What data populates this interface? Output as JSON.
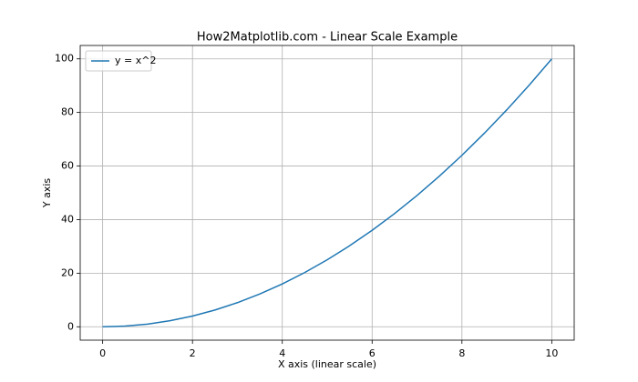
{
  "chart_data": {
    "type": "line",
    "title": "How2Matplotlib.com - Linear Scale Example",
    "x_label": "X axis (linear scale)",
    "y_label": "Y axis",
    "x": [
      0,
      0.5,
      1,
      1.5,
      2,
      2.5,
      3,
      3.5,
      4,
      4.5,
      5,
      5.5,
      6,
      6.5,
      7,
      7.5,
      8,
      8.5,
      9,
      9.5,
      10
    ],
    "series": [
      {
        "name": "y = x^2",
        "color": "#1f77b4",
        "values": [
          0,
          0.25,
          1,
          2.25,
          4,
          6.25,
          9,
          12.25,
          16,
          20.25,
          25,
          30.25,
          36,
          42.25,
          49,
          56.25,
          64,
          72.25,
          81,
          90.25,
          100
        ]
      }
    ],
    "xlim": [
      -0.5,
      10.5
    ],
    "xticks": [
      0,
      2,
      4,
      6,
      8,
      10
    ],
    "ylim": [
      -5,
      105
    ],
    "yticks": [
      0,
      20,
      40,
      60,
      80,
      100
    ],
    "grid": true,
    "legend": "upper left"
  }
}
